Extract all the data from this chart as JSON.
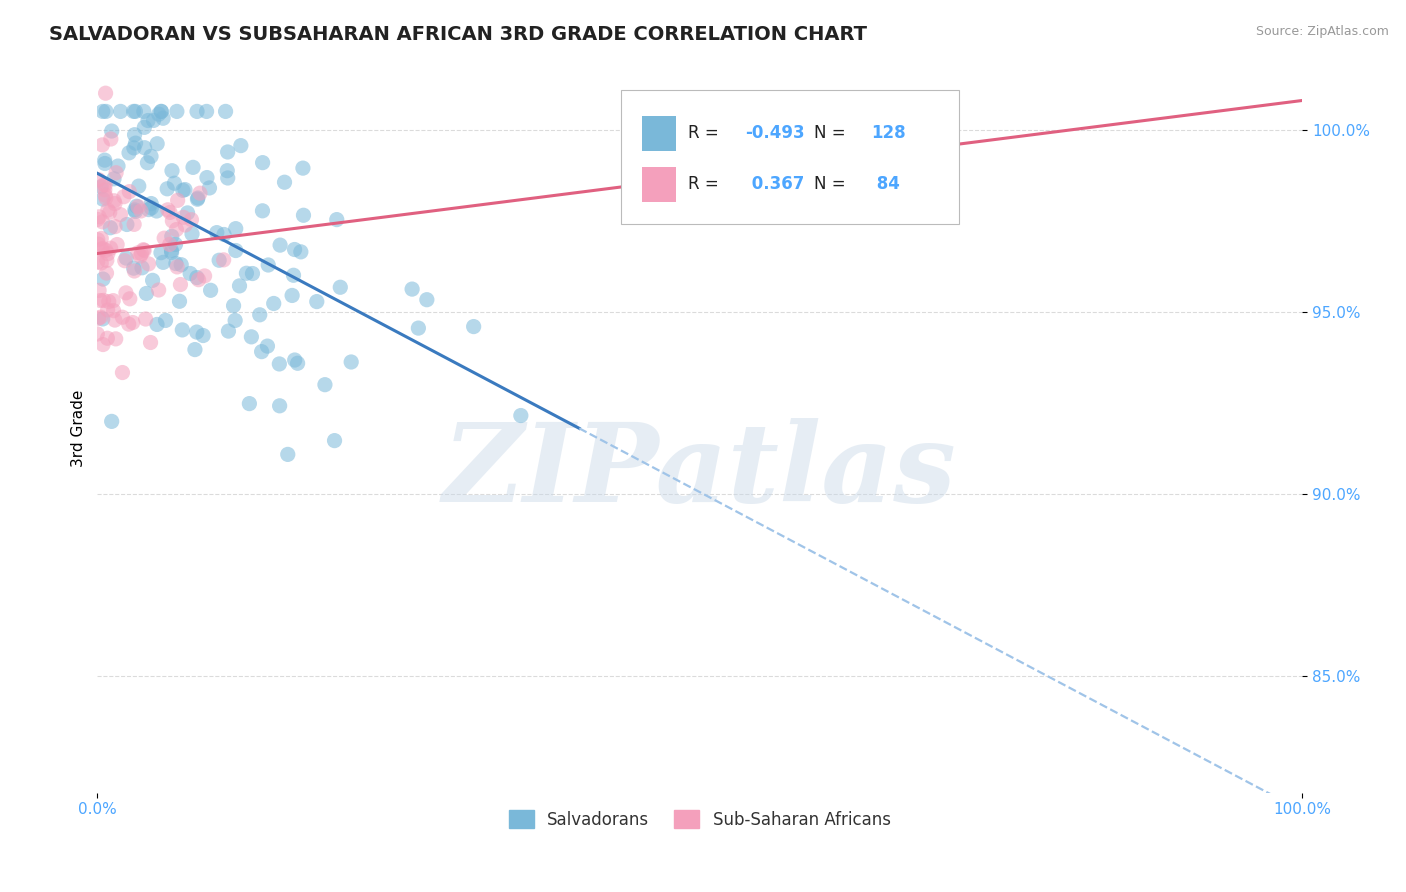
{
  "title": "SALVADORAN VS SUBSAHARAN AFRICAN 3RD GRADE CORRELATION CHART",
  "source_text": "Source: ZipAtlas.com",
  "ylabel": "3rd Grade",
  "xlim": [
    0.0,
    1.0
  ],
  "ylim": [
    0.818,
    1.018
  ],
  "yticks": [
    0.85,
    0.9,
    0.95,
    1.0
  ],
  "ytick_labels": [
    "85.0%",
    "90.0%",
    "95.0%",
    "100.0%"
  ],
  "xtick_labels": [
    "0.0%",
    "100.0%"
  ],
  "blue_color": "#7ab8d9",
  "pink_color": "#f4a0bc",
  "blue_line_color": "#3a7abf",
  "pink_line_color": "#e06080",
  "dashed_line_color": "#a0c4e8",
  "grid_color": "#cccccc",
  "label_color": "#4da6ff",
  "legend_blue_label": "Salvadorans",
  "legend_pink_label": "Sub-Saharan Africans",
  "R_blue": -0.493,
  "N_blue": 128,
  "R_pink": 0.367,
  "N_pink": 84,
  "watermark": "ZIPatlas",
  "background_color": "#ffffff",
  "title_fontsize": 14,
  "axis_label_fontsize": 11,
  "tick_fontsize": 11,
  "blue_line_start_x": 0.0,
  "blue_line_start_y": 0.988,
  "blue_line_solid_end_x": 0.4,
  "blue_line_solid_end_y": 0.918,
  "blue_line_dashed_end_x": 1.0,
  "blue_line_dashed_end_y": 0.813,
  "pink_line_start_x": 0.0,
  "pink_line_start_y": 0.966,
  "pink_line_end_x": 1.0,
  "pink_line_end_y": 1.008
}
